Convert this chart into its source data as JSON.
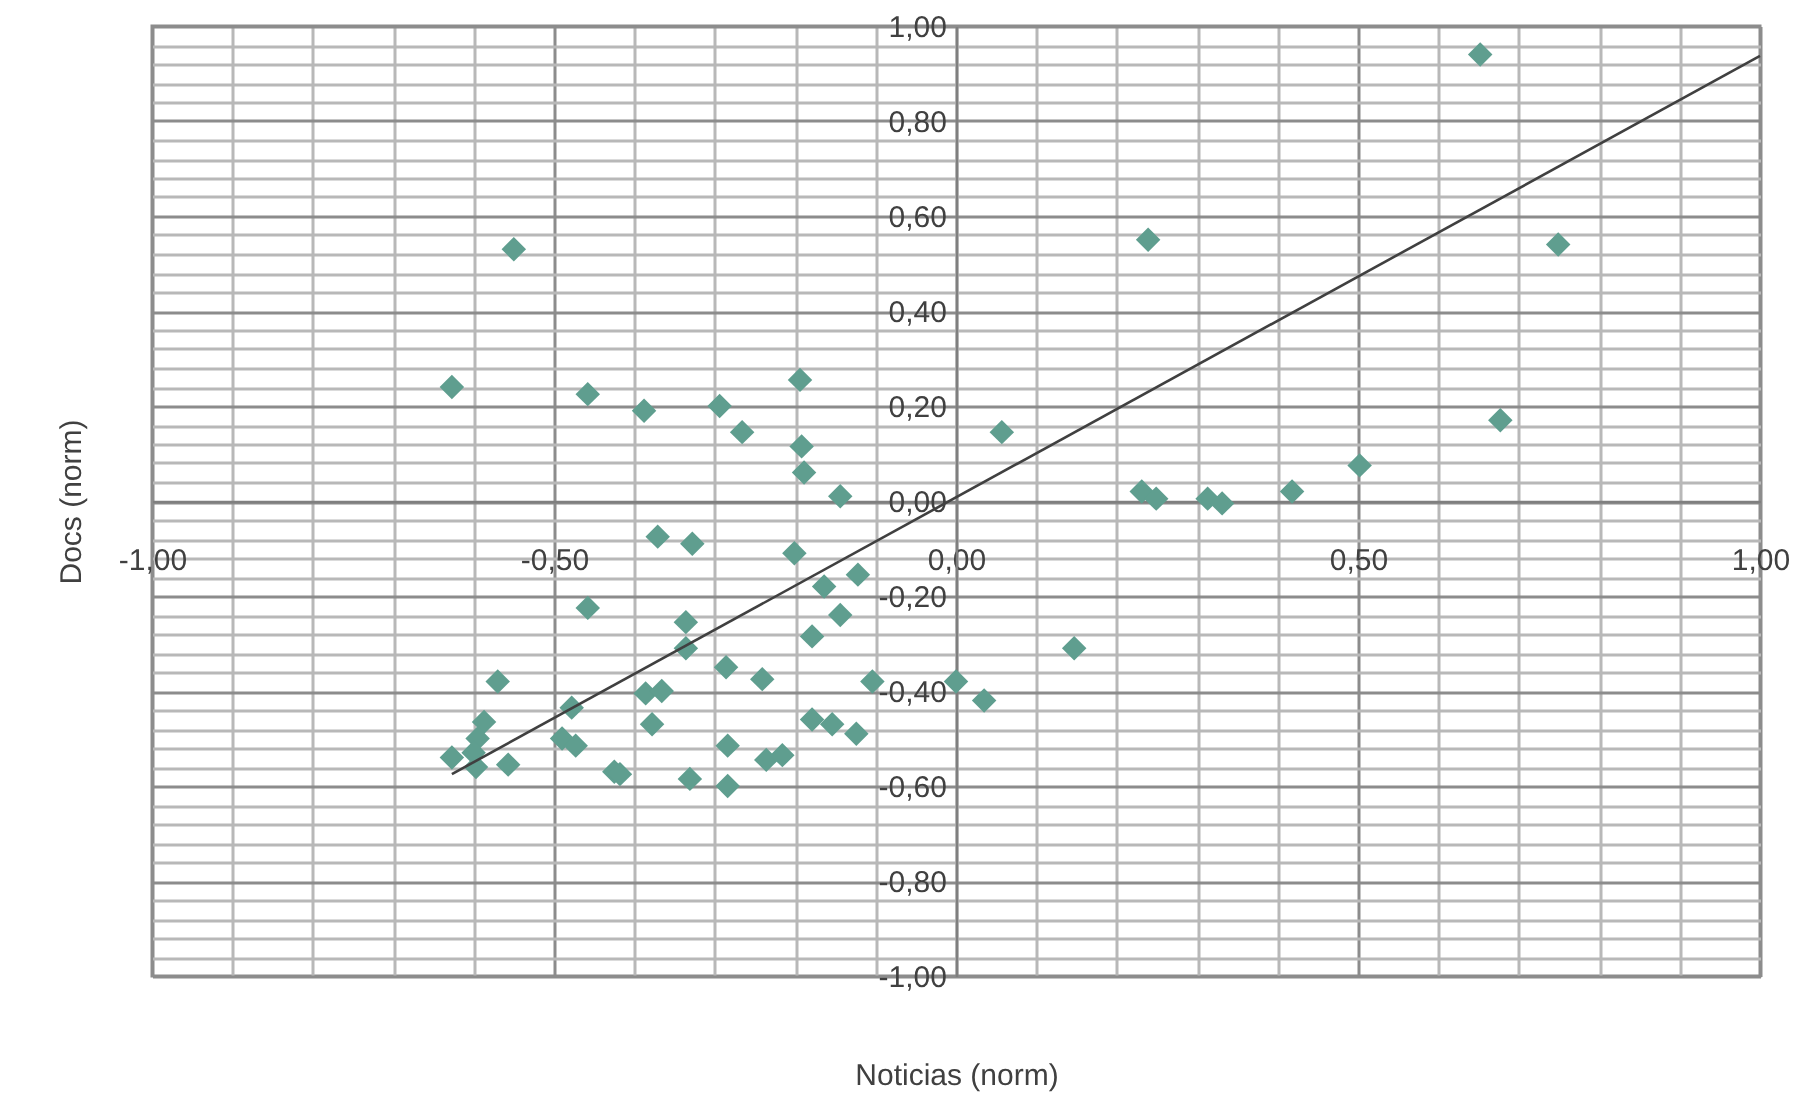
{
  "chart_data": {
    "type": "scatter",
    "xlabel": "Noticias (norm)",
    "ylabel": "Docs (norm)",
    "xlim": [
      -1,
      1
    ],
    "ylim": [
      -1,
      1
    ],
    "xticks": [
      {
        "value": -1,
        "label": "-1,00"
      },
      {
        "value": -0.9,
        "label": null
      },
      {
        "value": -0.8,
        "label": null
      },
      {
        "value": -0.7,
        "label": null
      },
      {
        "value": -0.6,
        "label": null
      },
      {
        "value": -0.5,
        "label": "-0,50"
      },
      {
        "value": -0.4,
        "label": null
      },
      {
        "value": -0.3,
        "label": null
      },
      {
        "value": -0.2,
        "label": null
      },
      {
        "value": -0.1,
        "label": null
      },
      {
        "value": 0,
        "label": "0,00"
      },
      {
        "value": 0.1,
        "label": null
      },
      {
        "value": 0.2,
        "label": null
      },
      {
        "value": 0.3,
        "label": null
      },
      {
        "value": 0.4,
        "label": null
      },
      {
        "value": 0.5,
        "label": "0,50"
      },
      {
        "value": 0.6,
        "label": null
      },
      {
        "value": 0.7,
        "label": null
      },
      {
        "value": 0.8,
        "label": null
      },
      {
        "value": 0.9,
        "label": null
      },
      {
        "value": 1,
        "label": "1,00"
      }
    ],
    "yticks": [
      {
        "value": -1,
        "label": "-1,00"
      },
      {
        "value": -0.96,
        "label": null
      },
      {
        "value": -0.92,
        "label": null
      },
      {
        "value": -0.88,
        "label": null
      },
      {
        "value": -0.84,
        "label": null
      },
      {
        "value": -0.8,
        "label": "-0,80"
      },
      {
        "value": -0.76,
        "label": null
      },
      {
        "value": -0.72,
        "label": null
      },
      {
        "value": -0.68,
        "label": null
      },
      {
        "value": -0.64,
        "label": null
      },
      {
        "value": -0.6,
        "label": "-0,60"
      },
      {
        "value": -0.56,
        "label": null
      },
      {
        "value": -0.52,
        "label": null
      },
      {
        "value": -0.48,
        "label": null
      },
      {
        "value": -0.44,
        "label": null
      },
      {
        "value": -0.4,
        "label": "-0,40"
      },
      {
        "value": -0.36,
        "label": null
      },
      {
        "value": -0.32,
        "label": null
      },
      {
        "value": -0.28,
        "label": null
      },
      {
        "value": -0.24,
        "label": null
      },
      {
        "value": -0.2,
        "label": "-0,20"
      },
      {
        "value": -0.16,
        "label": null
      },
      {
        "value": -0.12,
        "label": null
      },
      {
        "value": -0.08,
        "label": null
      },
      {
        "value": -0.04,
        "label": null
      },
      {
        "value": 0,
        "label": "0,00"
      },
      {
        "value": 0.04,
        "label": null
      },
      {
        "value": 0.08,
        "label": null
      },
      {
        "value": 0.12,
        "label": null
      },
      {
        "value": 0.16,
        "label": null
      },
      {
        "value": 0.2,
        "label": "0,20"
      },
      {
        "value": 0.24,
        "label": null
      },
      {
        "value": 0.28,
        "label": null
      },
      {
        "value": 0.32,
        "label": null
      },
      {
        "value": 0.36,
        "label": null
      },
      {
        "value": 0.4,
        "label": "0,40"
      },
      {
        "value": 0.44,
        "label": null
      },
      {
        "value": 0.48,
        "label": null
      },
      {
        "value": 0.52,
        "label": null
      },
      {
        "value": 0.56,
        "label": null
      },
      {
        "value": 0.6,
        "label": "0,60"
      },
      {
        "value": 0.64,
        "label": null
      },
      {
        "value": 0.68,
        "label": null
      },
      {
        "value": 0.72,
        "label": null
      },
      {
        "value": 0.76,
        "label": null
      },
      {
        "value": 0.8,
        "label": "0,80"
      },
      {
        "value": 0.84,
        "label": null
      },
      {
        "value": 0.88,
        "label": null
      },
      {
        "value": 0.92,
        "label": null
      },
      {
        "value": 0.96,
        "label": null
      },
      {
        "value": 1,
        "label": "1,00"
      }
    ],
    "grid": true,
    "marker": "diamond",
    "series": [
      {
        "color": "#5f9e8f",
        "x": [
          0.652,
          0.749,
          0.677,
          0.239,
          0.057,
          0.231,
          0.249,
          0.313,
          0.331,
          0.418,
          0.502,
          0.147,
          0.0,
          0.035,
          -0.55,
          -0.627,
          -0.458,
          -0.388,
          -0.294,
          -0.266,
          -0.194,
          -0.192,
          -0.189,
          -0.144,
          -0.371,
          -0.328,
          -0.201,
          -0.164,
          -0.122,
          -0.458,
          -0.179,
          -0.144,
          -0.336,
          -0.336,
          -0.286,
          -0.241,
          -0.104,
          -0.57,
          -0.386,
          -0.366,
          -0.478,
          -0.378,
          -0.179,
          -0.154,
          -0.124,
          -0.587,
          -0.595,
          -0.49,
          -0.473,
          -0.284,
          -0.627,
          -0.597,
          -0.557,
          -0.425,
          -0.418,
          -0.331,
          -0.284,
          -0.236,
          -0.216,
          -0.6
        ],
        "values": [
          0.94,
          0.54,
          0.17,
          0.55,
          0.145,
          0.02,
          0.005,
          0.005,
          -0.005,
          0.02,
          0.075,
          -0.31,
          -0.38,
          -0.42,
          0.53,
          0.24,
          0.225,
          0.19,
          0.2,
          0.145,
          0.255,
          0.115,
          0.06,
          0.01,
          -0.075,
          -0.09,
          -0.11,
          -0.18,
          -0.155,
          -0.225,
          -0.285,
          -0.24,
          -0.255,
          -0.31,
          -0.35,
          -0.375,
          -0.38,
          -0.38,
          -0.405,
          -0.4,
          -0.435,
          -0.47,
          -0.46,
          -0.47,
          -0.49,
          -0.465,
          -0.5,
          -0.5,
          -0.515,
          -0.515,
          -0.54,
          -0.56,
          -0.555,
          -0.57,
          -0.575,
          -0.585,
          -0.6,
          -0.545,
          -0.535,
          -0.53
        ]
      },
      {
        "type": "line",
        "marker": "none",
        "color": "#404040",
        "x": [
          -0.627,
          1.0
        ],
        "values": [
          -0.575,
          0.937
        ]
      }
    ]
  }
}
